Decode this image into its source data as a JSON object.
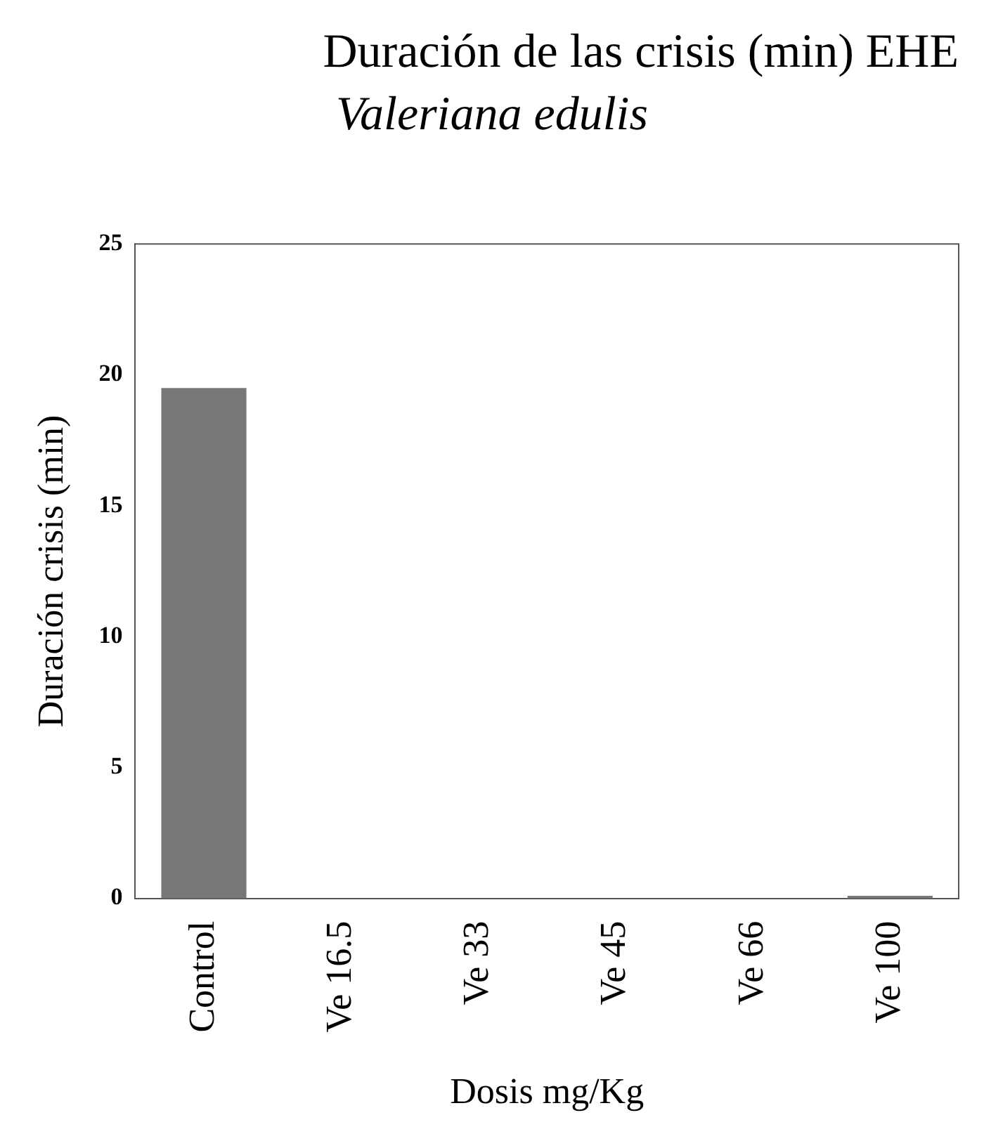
{
  "chart_data": {
    "type": "bar",
    "title": "Duración de las crisis (min) EHE",
    "subtitle": "Valeriana edulis",
    "xlabel": "Dosis mg/Kg",
    "ylabel": "Duración crisis (min)",
    "categories": [
      "Control",
      "Ve 16.5",
      "Ve 33",
      "Ve 45",
      "Ve 66",
      "Ve 100"
    ],
    "values": [
      19.5,
      0,
      0,
      0,
      0,
      0.1
    ],
    "color": "#777777",
    "ylim": [
      0,
      25
    ],
    "yticks": [
      0,
      5,
      10,
      15,
      20,
      25
    ],
    "grid": false,
    "legend": false
  }
}
